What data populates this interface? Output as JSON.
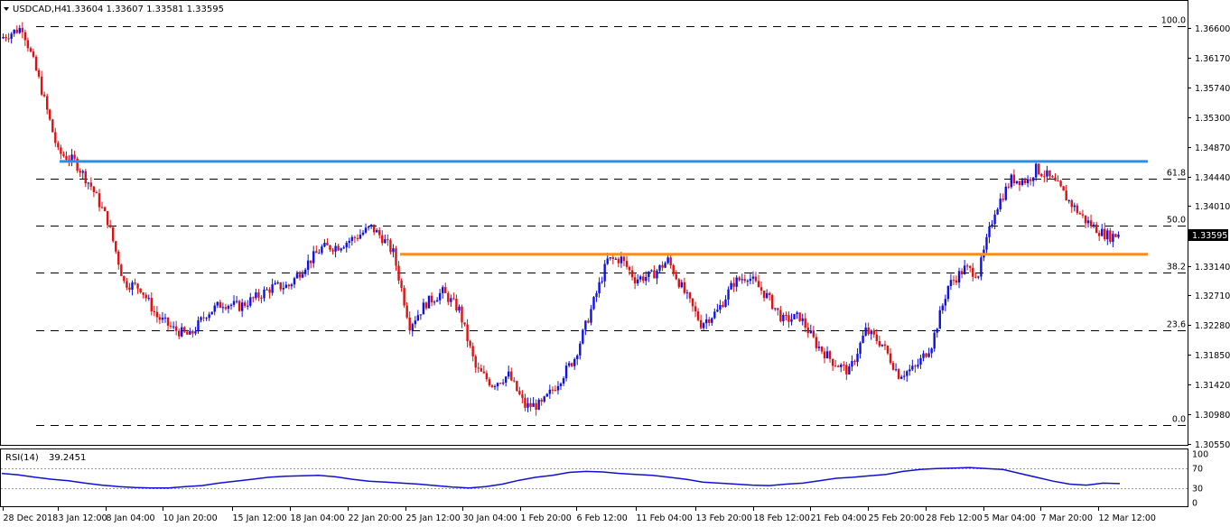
{
  "header": {
    "symbol": "USDCAD,H4",
    "ohlc": "1.33604 1.33607 1.33581 1.33595"
  },
  "colors": {
    "bull": "#1010e0",
    "bear": "#e01010",
    "resistance": "#2b8fe8",
    "support": "#ff8c1a",
    "rsi": "#1010d0",
    "grid": "#000000"
  },
  "chart_data": [
    {
      "type": "candlestick",
      "ylim": [
        1.3055,
        1.368
      ],
      "y_ticks": [
        "1.36600",
        "1.36170",
        "1.35740",
        "1.35300",
        "1.34870",
        "1.34440",
        "1.34010",
        "1.33595",
        "1.33140",
        "1.32710",
        "1.32280",
        "1.31850",
        "1.31420",
        "1.30980",
        "1.30550"
      ],
      "y_tick_values": [
        1.366,
        1.3617,
        1.3574,
        1.353,
        1.3487,
        1.3444,
        1.3401,
        1.33595,
        1.3314,
        1.3271,
        1.3228,
        1.3185,
        1.3142,
        1.3098,
        1.3055
      ],
      "current_price": "1.33595",
      "x_ticks": [
        "28 Dec 2018",
        "3 Jan 12:00",
        "8 Jan 04:00",
        "10 Jan 20:00",
        "15 Jan 12:00",
        "18 Jan 04:00",
        "22 Jan 20:00",
        "25 Jan 12:00",
        "30 Jan 04:00",
        "1 Feb 20:00",
        "6 Feb 12:00",
        "11 Feb 04:00",
        "13 Feb 20:00",
        "18 Feb 12:00",
        "21 Feb 04:00",
        "25 Feb 20:00",
        "28 Feb 12:00",
        "5 Mar 04:00",
        "7 Mar 20:00",
        "12 Mar 12:00"
      ],
      "fibonacci": [
        {
          "label": "100.0",
          "value": 1.3662
        },
        {
          "label": "61.8",
          "value": 1.3441
        },
        {
          "label": "50.0",
          "value": 1.3373
        },
        {
          "label": "38.2",
          "value": 1.3304
        },
        {
          "label": "23.6",
          "value": 1.3221
        },
        {
          "label": "0.0",
          "value": 1.3083
        }
      ],
      "resistance_level": 1.3466,
      "support_level": 1.3331,
      "path": [
        [
          0,
          1.3645
        ],
        [
          8,
          1.3661
        ],
        [
          14,
          1.3585
        ],
        [
          21,
          1.3479
        ],
        [
          27,
          1.3466
        ],
        [
          33,
          1.343
        ],
        [
          39,
          1.338
        ],
        [
          45,
          1.329
        ],
        [
          51,
          1.3282
        ],
        [
          57,
          1.324
        ],
        [
          63,
          1.3222
        ],
        [
          69,
          1.3212
        ],
        [
          75,
          1.3245
        ],
        [
          81,
          1.326
        ],
        [
          87,
          1.3255
        ],
        [
          93,
          1.3268
        ],
        [
          99,
          1.3283
        ],
        [
          105,
          1.3285
        ],
        [
          111,
          1.3315
        ],
        [
          117,
          1.334
        ],
        [
          123,
          1.3343
        ],
        [
          129,
          1.3355
        ],
        [
          135,
          1.337
        ],
        [
          139,
          1.3355
        ],
        [
          143,
          1.3333
        ],
        [
          149,
          1.3228
        ],
        [
          155,
          1.326
        ],
        [
          161,
          1.3276
        ],
        [
          167,
          1.325
        ],
        [
          173,
          1.3165
        ],
        [
          179,
          1.3142
        ],
        [
          185,
          1.3155
        ],
        [
          191,
          1.311
        ],
        [
          197,
          1.3112
        ],
        [
          203,
          1.3145
        ],
        [
          209,
          1.318
        ],
        [
          215,
          1.325
        ],
        [
          221,
          1.3322
        ],
        [
          226,
          1.3324
        ],
        [
          231,
          1.3295
        ],
        [
          237,
          1.33
        ],
        [
          243,
          1.3322
        ],
        [
          249,
          1.3275
        ],
        [
          255,
          1.323
        ],
        [
          261,
          1.3248
        ],
        [
          267,
          1.329
        ],
        [
          272,
          1.33
        ],
        [
          279,
          1.327
        ],
        [
          285,
          1.3235
        ],
        [
          291,
          1.324
        ],
        [
          297,
          1.32
        ],
        [
          303,
          1.3175
        ],
        [
          309,
          1.316
        ],
        [
          315,
          1.322
        ],
        [
          321,
          1.32
        ],
        [
          327,
          1.3156
        ],
        [
          333,
          1.3165
        ],
        [
          339,
          1.32
        ],
        [
          345,
          1.3285
        ],
        [
          351,
          1.331
        ],
        [
          356,
          1.3303
        ],
        [
          362,
          1.3395
        ],
        [
          368,
          1.344
        ],
        [
          374,
          1.3438
        ],
        [
          377,
          1.3455
        ],
        [
          381,
          1.3445
        ],
        [
          385,
          1.343
        ],
        [
          389,
          1.3408
        ],
        [
          395,
          1.338
        ],
        [
          401,
          1.3362
        ],
        [
          404,
          1.3357
        ],
        [
          406,
          1.3359
        ]
      ],
      "visible_candles": 407
    },
    {
      "type": "line",
      "indicator": "RSI(14)",
      "value": "39.2451",
      "ylim": [
        0,
        100
      ],
      "levels": [
        70,
        30
      ],
      "y_ticks": [
        "100",
        "70",
        "30",
        "0"
      ],
      "y_tick_values": [
        100,
        70,
        30,
        0
      ],
      "values": [
        60,
        57,
        52,
        48,
        45,
        40,
        36,
        33,
        31,
        30,
        30,
        33,
        35,
        40,
        44,
        48,
        52,
        54,
        55,
        56,
        53,
        48,
        44,
        42,
        40,
        38,
        35,
        32,
        30,
        33,
        38,
        46,
        52,
        56,
        62,
        64,
        63,
        60,
        58,
        56,
        52,
        48,
        42,
        40,
        38,
        36,
        35,
        38,
        40,
        45,
        50,
        52,
        55,
        58,
        64,
        68,
        70,
        71,
        72,
        70,
        68,
        60,
        52,
        44,
        38,
        36,
        40,
        39
      ]
    }
  ]
}
